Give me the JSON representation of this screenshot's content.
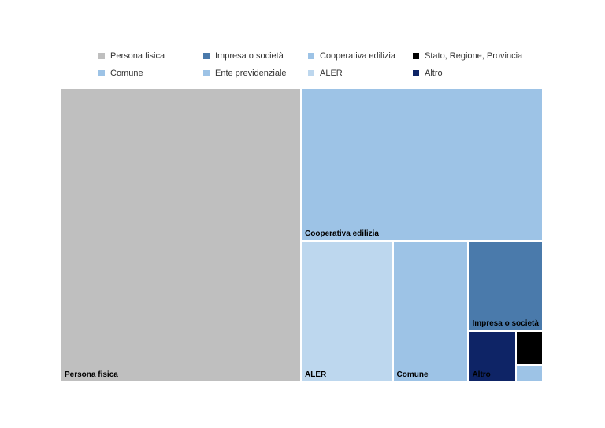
{
  "chart_data": {
    "type": "treemap",
    "title": "",
    "legend_position": "top",
    "series": [
      {
        "name": "Persona fisica",
        "value": 46.5,
        "color": "#bfbfbf",
        "show_label": true
      },
      {
        "name": "Impresa o società",
        "value": 4.4,
        "color": "#4a7aab",
        "show_label": true
      },
      {
        "name": "Cooperativa edilizia",
        "value": 24.4,
        "color": "#9dc3e6",
        "show_label": true
      },
      {
        "name": "Stato, Regione, Provincia",
        "value": 0.6,
        "color": "#000000",
        "show_label": false
      },
      {
        "name": "Comune",
        "value": 7.0,
        "color": "#9dc3e6",
        "show_label": true
      },
      {
        "name": "Ente previdenziale",
        "value": 0.3,
        "color": "#9dc3e6",
        "show_label": false
      },
      {
        "name": "ALER",
        "value": 8.5,
        "color": "#bdd7ee",
        "show_label": true
      },
      {
        "name": "Altro",
        "value": 1.6,
        "color": "#0e2466",
        "show_label": true
      }
    ]
  }
}
